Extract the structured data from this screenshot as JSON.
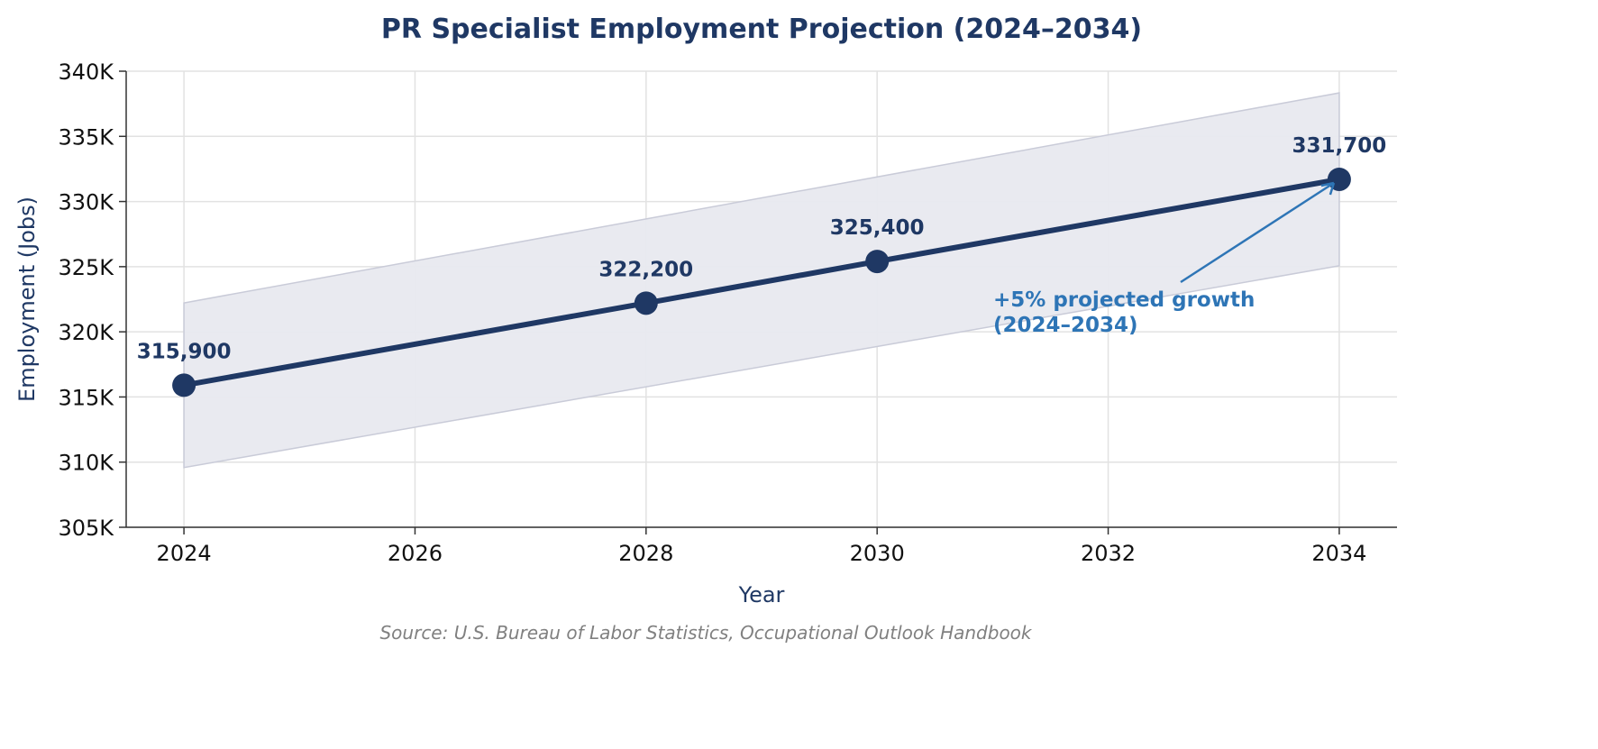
{
  "chart_data": {
    "type": "line",
    "title": "PR Specialist Employment Projection (2024–2034)",
    "xlabel": "Year",
    "ylabel": "Employment (Jobs)",
    "source": "Source: U.S. Bureau of Labor Statistics, Occupational Outlook Handbook",
    "xlim": [
      2023.5,
      2034.5
    ],
    "ylim": [
      305000,
      340000
    ],
    "x_ticks": [
      2024,
      2026,
      2028,
      2030,
      2032,
      2034
    ],
    "y_ticks": [
      305000,
      310000,
      315000,
      320000,
      325000,
      330000,
      335000,
      340000
    ],
    "y_tick_labels": [
      "305K",
      "310K",
      "315K",
      "320K",
      "325K",
      "330K",
      "335K",
      "340K"
    ],
    "grid": true,
    "series": [
      {
        "x": [
          2024,
          2028,
          2030,
          2034
        ],
        "y": [
          315900,
          322200,
          325400,
          331700
        ],
        "data_labels": [
          "315,900",
          "322,200",
          "325,400",
          "331,700"
        ],
        "color": "#1f3864"
      }
    ],
    "band": {
      "x": [
        2024,
        2034
      ],
      "lower": [
        309582,
        325066
      ],
      "upper": [
        322218,
        338334
      ],
      "color": "#e8e9ef"
    },
    "annotation": {
      "lines": [
        "+5% projected growth",
        "(2024–2034)"
      ],
      "points_to": [
        2034,
        331700
      ],
      "color": "#2e75b6"
    }
  }
}
